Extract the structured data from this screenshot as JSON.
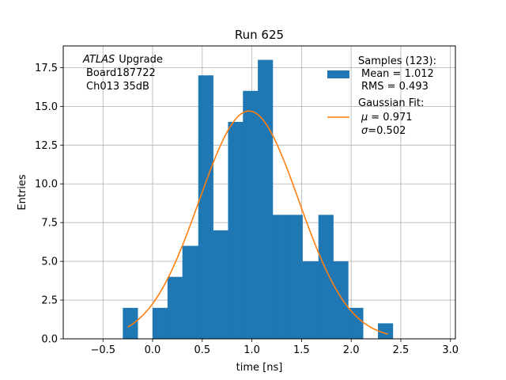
{
  "chart_data": {
    "type": "bar",
    "title": "Run 625",
    "xlabel": "time [ns]",
    "ylabel": "Entries",
    "xlim": [
      -0.9,
      3.05
    ],
    "ylim": [
      0,
      18.9
    ],
    "grid": true,
    "x_ticks": [
      -0.5,
      0.0,
      0.5,
      1.0,
      1.5,
      2.0,
      2.5,
      3.0
    ],
    "x_tick_labels": [
      "−0.5",
      "0.0",
      "0.5",
      "1.0",
      "1.5",
      "2.0",
      "2.5",
      "3.0"
    ],
    "y_ticks": [
      0,
      2.5,
      5,
      7.5,
      10,
      12.5,
      15,
      17.5
    ],
    "y_tick_labels": [
      "0.0",
      "2.5",
      "5.0",
      "7.5",
      "10.0",
      "12.5",
      "15.0",
      "17.5"
    ],
    "histogram": {
      "name": "Samples (123):",
      "color": "#1f77b4",
      "bins": [
        [
          -0.3,
          -0.15,
          2
        ],
        [
          -0.15,
          0.0,
          0
        ],
        [
          0.0,
          0.15,
          2
        ],
        [
          0.15,
          0.3,
          4
        ],
        [
          0.3,
          0.46,
          6
        ],
        [
          0.46,
          0.61,
          17
        ],
        [
          0.61,
          0.76,
          7
        ],
        [
          0.76,
          0.91,
          14
        ],
        [
          0.91,
          1.06,
          16
        ],
        [
          1.06,
          1.21,
          18
        ],
        [
          1.21,
          1.36,
          8
        ],
        [
          1.36,
          1.51,
          8
        ],
        [
          1.51,
          1.67,
          5
        ],
        [
          1.67,
          1.82,
          8
        ],
        [
          1.82,
          1.97,
          5
        ],
        [
          1.97,
          2.12,
          2
        ],
        [
          2.12,
          2.27,
          0
        ],
        [
          2.27,
          2.42,
          1
        ]
      ]
    },
    "fit": {
      "name": "Gaussian Fit:",
      "color": "#ff7f0e",
      "mu": 0.971,
      "sigma": 0.502,
      "amplitude": 14.7,
      "x_range": [
        -0.25,
        2.37
      ]
    },
    "legend": {
      "placement": "top-right",
      "samples_title": "Samples (123):",
      "samples_mean": "Mean = 1.012",
      "samples_rms": "RMS = 0.493",
      "fit_title": "Gaussian Fit:",
      "fit_mu_value": "= 0.971",
      "fit_sigma_value": "=0.502"
    },
    "annotation": {
      "experiment": "ATLAS",
      "suffix": "Upgrade",
      "board": "Board187722",
      "channel": "Ch013 35dB"
    }
  }
}
